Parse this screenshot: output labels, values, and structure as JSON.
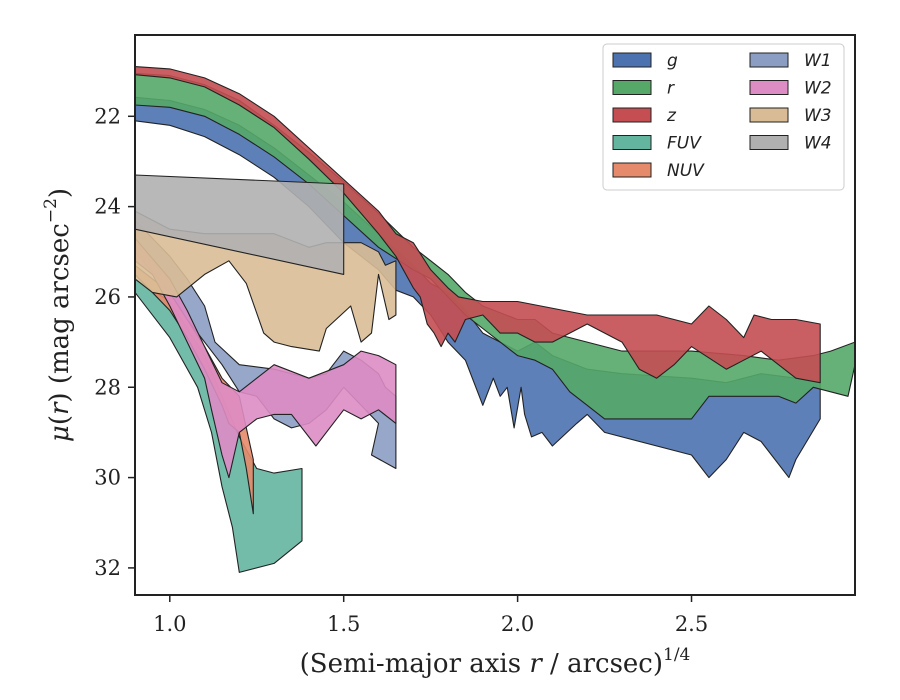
{
  "chart_data": {
    "type": "area",
    "xlabel_main": "(Semi-major axis ",
    "xlabel_var": "r",
    "xlabel_tail": " / arcsec)",
    "xlabel_sup": "1/4",
    "ylabel_mu": "μ",
    "ylabel_paren": "(",
    "ylabel_var": "r",
    "ylabel_mid": ") (mag arcsec",
    "ylabel_sup": "−2",
    "ylabel_end": ")",
    "xlim": [
      0.9,
      2.97
    ],
    "ylim": [
      32.6,
      20.2
    ],
    "y_inverted": true,
    "xticks": [
      1.0,
      1.5,
      2.0,
      2.5
    ],
    "xtick_labels": [
      "1.0",
      "1.5",
      "2.0",
      "2.5"
    ],
    "yticks": [
      22,
      24,
      26,
      28,
      30,
      32
    ],
    "ytick_labels": [
      "22",
      "24",
      "26",
      "28",
      "30",
      "32"
    ],
    "grid": false,
    "legend": {
      "placement": "top-right",
      "columns": 2
    },
    "series": [
      {
        "name": "g",
        "color": "#4C72B0",
        "upper": [
          [
            0.9,
            21.58
          ],
          [
            1.0,
            21.65
          ],
          [
            1.1,
            21.85
          ],
          [
            1.2,
            22.2
          ],
          [
            1.3,
            22.7
          ],
          [
            1.4,
            23.3
          ],
          [
            1.5,
            23.9
          ],
          [
            1.6,
            24.6
          ],
          [
            1.7,
            25.3
          ],
          [
            1.75,
            25.7
          ],
          [
            1.8,
            25.9
          ],
          [
            1.85,
            26.3
          ],
          [
            1.9,
            26.8
          ],
          [
            1.95,
            27.0
          ],
          [
            2.0,
            27.2
          ],
          [
            2.05,
            27.0
          ],
          [
            2.1,
            27.3
          ],
          [
            2.2,
            27.6
          ],
          [
            2.3,
            27.7
          ],
          [
            2.5,
            27.8
          ],
          [
            2.6,
            27.9
          ],
          [
            2.7,
            27.7
          ],
          [
            2.8,
            27.8
          ],
          [
            2.87,
            27.9
          ]
        ],
        "lower": [
          [
            2.87,
            28.7
          ],
          [
            2.8,
            29.6
          ],
          [
            2.78,
            30.0
          ],
          [
            2.7,
            29.2
          ],
          [
            2.65,
            29.0
          ],
          [
            2.6,
            29.6
          ],
          [
            2.55,
            30.0
          ],
          [
            2.5,
            29.5
          ],
          [
            2.25,
            29.0
          ],
          [
            2.2,
            28.6
          ],
          [
            2.17,
            28.8
          ],
          [
            2.1,
            29.3
          ],
          [
            2.07,
            29.0
          ],
          [
            2.04,
            29.1
          ],
          [
            2.02,
            28.6
          ],
          [
            2.01,
            28.0
          ],
          [
            1.99,
            28.9
          ],
          [
            1.97,
            28.0
          ],
          [
            1.95,
            28.2
          ],
          [
            1.93,
            27.8
          ],
          [
            1.9,
            28.4
          ],
          [
            1.85,
            27.4
          ],
          [
            1.8,
            27.0
          ],
          [
            1.75,
            26.4
          ],
          [
            1.7,
            26.0
          ],
          [
            1.65,
            25.85
          ],
          [
            1.6,
            25.4
          ],
          [
            1.5,
            24.8
          ],
          [
            1.4,
            24.0
          ],
          [
            1.3,
            23.35
          ],
          [
            1.2,
            22.85
          ],
          [
            1.1,
            22.45
          ],
          [
            1.0,
            22.2
          ],
          [
            0.9,
            22.1
          ]
        ]
      },
      {
        "name": "r",
        "color": "#55A868",
        "upper": [
          [
            0.9,
            21.05
          ],
          [
            1.0,
            21.1
          ],
          [
            1.1,
            21.3
          ],
          [
            1.2,
            21.65
          ],
          [
            1.3,
            22.2
          ],
          [
            1.4,
            22.8
          ],
          [
            1.5,
            23.45
          ],
          [
            1.6,
            24.15
          ],
          [
            1.7,
            24.9
          ],
          [
            1.75,
            25.2
          ],
          [
            1.8,
            25.5
          ],
          [
            1.85,
            25.9
          ],
          [
            1.9,
            26.2
          ],
          [
            2.0,
            26.5
          ],
          [
            2.05,
            26.5
          ],
          [
            2.1,
            26.8
          ],
          [
            2.2,
            27.0
          ],
          [
            2.3,
            27.2
          ],
          [
            2.5,
            27.2
          ],
          [
            2.65,
            27.3
          ],
          [
            2.75,
            27.4
          ],
          [
            2.85,
            27.3
          ],
          [
            2.9,
            27.2
          ],
          [
            2.97,
            27.0
          ]
        ],
        "lower": [
          [
            2.97,
            27.5
          ],
          [
            2.95,
            28.2
          ],
          [
            2.85,
            28.0
          ],
          [
            2.8,
            28.35
          ],
          [
            2.75,
            28.2
          ],
          [
            2.55,
            28.2
          ],
          [
            2.5,
            28.7
          ],
          [
            2.25,
            28.7
          ],
          [
            2.2,
            28.4
          ],
          [
            2.15,
            28.1
          ],
          [
            2.1,
            27.6
          ],
          [
            2.05,
            27.4
          ],
          [
            2.0,
            27.3
          ],
          [
            1.95,
            27.0
          ],
          [
            1.9,
            26.7
          ],
          [
            1.85,
            26.4
          ],
          [
            1.8,
            26.0
          ],
          [
            1.75,
            25.6
          ],
          [
            1.7,
            25.4
          ],
          [
            1.6,
            24.9
          ],
          [
            1.5,
            24.2
          ],
          [
            1.4,
            23.5
          ],
          [
            1.3,
            22.9
          ],
          [
            1.2,
            22.4
          ],
          [
            1.1,
            22.0
          ],
          [
            1.0,
            21.8
          ],
          [
            0.9,
            21.75
          ]
        ]
      },
      {
        "name": "z",
        "color": "#C44E52",
        "upper": [
          [
            0.9,
            20.9
          ],
          [
            1.0,
            20.95
          ],
          [
            1.1,
            21.15
          ],
          [
            1.2,
            21.5
          ],
          [
            1.3,
            22.0
          ],
          [
            1.4,
            22.7
          ],
          [
            1.5,
            23.4
          ],
          [
            1.6,
            24.1
          ],
          [
            1.65,
            24.6
          ],
          [
            1.7,
            24.8
          ],
          [
            1.75,
            25.4
          ],
          [
            1.8,
            25.8
          ],
          [
            1.83,
            26.0
          ],
          [
            1.9,
            26.1
          ],
          [
            2.0,
            26.1
          ],
          [
            2.2,
            26.4
          ],
          [
            2.4,
            26.4
          ],
          [
            2.5,
            26.6
          ],
          [
            2.55,
            26.2
          ],
          [
            2.6,
            26.5
          ],
          [
            2.65,
            26.9
          ],
          [
            2.68,
            26.4
          ],
          [
            2.73,
            26.5
          ],
          [
            2.8,
            26.5
          ],
          [
            2.87,
            26.6
          ]
        ],
        "lower": [
          [
            2.87,
            27.9
          ],
          [
            2.8,
            27.8
          ],
          [
            2.7,
            27.2
          ],
          [
            2.65,
            27.4
          ],
          [
            2.6,
            27.6
          ],
          [
            2.5,
            27.1
          ],
          [
            2.45,
            27.5
          ],
          [
            2.4,
            27.8
          ],
          [
            2.35,
            27.6
          ],
          [
            2.3,
            27.0
          ],
          [
            2.2,
            26.6
          ],
          [
            2.1,
            27.0
          ],
          [
            2.05,
            27.0
          ],
          [
            2.0,
            26.8
          ],
          [
            1.95,
            26.8
          ],
          [
            1.9,
            26.4
          ],
          [
            1.85,
            26.5
          ],
          [
            1.82,
            27.0
          ],
          [
            1.8,
            26.8
          ],
          [
            1.78,
            27.1
          ],
          [
            1.76,
            26.8
          ],
          [
            1.74,
            26.6
          ],
          [
            1.72,
            26.0
          ],
          [
            1.7,
            25.8
          ],
          [
            1.65,
            25.1
          ],
          [
            1.6,
            24.6
          ],
          [
            1.5,
            23.7
          ],
          [
            1.4,
            22.95
          ],
          [
            1.3,
            22.25
          ],
          [
            1.2,
            21.75
          ],
          [
            1.1,
            21.35
          ],
          [
            1.0,
            21.15
          ],
          [
            0.9,
            21.08
          ]
        ]
      },
      {
        "name": "FUV",
        "color": "#64B5A0",
        "upper": [
          [
            0.9,
            25.6
          ],
          [
            1.0,
            26.1
          ],
          [
            1.05,
            26.7
          ],
          [
            1.1,
            27.3
          ],
          [
            1.15,
            28.2
          ],
          [
            1.2,
            29.1
          ],
          [
            1.25,
            29.8
          ],
          [
            1.3,
            29.9
          ],
          [
            1.38,
            29.8
          ]
        ],
        "lower": [
          [
            1.38,
            31.4
          ],
          [
            1.3,
            31.9
          ],
          [
            1.2,
            32.1
          ],
          [
            1.18,
            31.1
          ],
          [
            1.15,
            30.2
          ],
          [
            1.12,
            29.0
          ],
          [
            1.08,
            28.0
          ],
          [
            1.0,
            26.9
          ],
          [
            0.9,
            25.9
          ]
        ]
      },
      {
        "name": "NUV",
        "color": "#E58A6A",
        "upper": [
          [
            0.9,
            25.3
          ],
          [
            1.0,
            25.9
          ],
          [
            1.05,
            26.5
          ],
          [
            1.1,
            27.1
          ],
          [
            1.15,
            27.8
          ],
          [
            1.2,
            28.2
          ],
          [
            1.24,
            29.6
          ]
        ],
        "lower": [
          [
            1.24,
            30.8
          ],
          [
            1.22,
            29.8
          ],
          [
            1.2,
            29.0
          ],
          [
            1.17,
            28.8
          ],
          [
            1.15,
            28.4
          ],
          [
            1.1,
            27.6
          ],
          [
            1.05,
            26.9
          ],
          [
            1.0,
            26.3
          ],
          [
            0.9,
            25.5
          ]
        ]
      },
      {
        "name": "W1",
        "color": "#8C9DC4",
        "upper": [
          [
            0.9,
            24.3
          ],
          [
            1.0,
            25.1
          ],
          [
            1.05,
            25.6
          ],
          [
            1.1,
            26.2
          ],
          [
            1.13,
            27.0
          ],
          [
            1.2,
            27.5
          ],
          [
            1.3,
            27.6
          ],
          [
            1.4,
            27.8
          ],
          [
            1.45,
            27.7
          ],
          [
            1.5,
            27.2
          ],
          [
            1.55,
            27.4
          ],
          [
            1.6,
            27.7
          ],
          [
            1.62,
            28.0
          ],
          [
            1.65,
            28.2
          ]
        ],
        "lower": [
          [
            1.65,
            29.8
          ],
          [
            1.58,
            29.5
          ],
          [
            1.6,
            28.8
          ],
          [
            1.55,
            28.4
          ],
          [
            1.5,
            28.0
          ],
          [
            1.45,
            28.5
          ],
          [
            1.4,
            28.8
          ],
          [
            1.35,
            28.9
          ],
          [
            1.3,
            28.7
          ],
          [
            1.25,
            28.2
          ],
          [
            1.2,
            28.1
          ],
          [
            1.15,
            27.5
          ],
          [
            1.1,
            27.0
          ],
          [
            1.05,
            26.5
          ],
          [
            1.0,
            25.9
          ],
          [
            0.9,
            25.0
          ]
        ]
      },
      {
        "name": "W2",
        "color": "#DD8CC4",
        "upper": [
          [
            0.9,
            24.7
          ],
          [
            1.0,
            25.6
          ],
          [
            1.05,
            26.3
          ],
          [
            1.1,
            27.1
          ],
          [
            1.15,
            27.9
          ],
          [
            1.2,
            28.1
          ],
          [
            1.3,
            27.5
          ],
          [
            1.4,
            27.8
          ],
          [
            1.5,
            27.5
          ],
          [
            1.55,
            27.2
          ],
          [
            1.6,
            27.3
          ],
          [
            1.65,
            27.5
          ]
        ],
        "lower": [
          [
            1.65,
            28.8
          ],
          [
            1.6,
            28.5
          ],
          [
            1.55,
            28.7
          ],
          [
            1.5,
            28.5
          ],
          [
            1.45,
            29.0
          ],
          [
            1.42,
            29.3
          ],
          [
            1.35,
            28.6
          ],
          [
            1.3,
            28.6
          ],
          [
            1.25,
            28.7
          ],
          [
            1.2,
            29.0
          ],
          [
            1.17,
            30.0
          ],
          [
            1.15,
            29.5
          ],
          [
            1.12,
            28.5
          ],
          [
            1.1,
            27.8
          ],
          [
            1.05,
            27.0
          ],
          [
            1.0,
            26.2
          ],
          [
            0.95,
            25.5
          ],
          [
            0.9,
            25.2
          ]
        ]
      },
      {
        "name": "W3",
        "color": "#D9BC95",
        "upper": [
          [
            0.9,
            24.1
          ],
          [
            1.0,
            24.5
          ],
          [
            1.1,
            24.6
          ],
          [
            1.2,
            24.6
          ],
          [
            1.3,
            24.6
          ],
          [
            1.4,
            24.9
          ],
          [
            1.45,
            24.8
          ],
          [
            1.5,
            24.8
          ],
          [
            1.55,
            24.8
          ],
          [
            1.6,
            25.0
          ],
          [
            1.62,
            25.3
          ],
          [
            1.65,
            25.2
          ]
        ],
        "lower": [
          [
            1.65,
            26.4
          ],
          [
            1.63,
            26.5
          ],
          [
            1.6,
            25.5
          ],
          [
            1.58,
            26.8
          ],
          [
            1.55,
            27.0
          ],
          [
            1.52,
            26.2
          ],
          [
            1.45,
            26.7
          ],
          [
            1.43,
            27.2
          ],
          [
            1.35,
            27.1
          ],
          [
            1.3,
            27.0
          ],
          [
            1.27,
            26.8
          ],
          [
            1.22,
            25.7
          ],
          [
            1.17,
            25.2
          ],
          [
            1.1,
            25.5
          ],
          [
            1.02,
            26.0
          ],
          [
            0.95,
            25.9
          ],
          [
            0.9,
            25.6
          ]
        ]
      },
      {
        "name": "W4",
        "color": "#B0B0B0",
        "upper": [
          [
            0.9,
            23.3
          ],
          [
            1.5,
            23.5
          ]
        ],
        "lower": [
          [
            1.5,
            25.5
          ],
          [
            0.9,
            24.5
          ]
        ]
      }
    ]
  }
}
